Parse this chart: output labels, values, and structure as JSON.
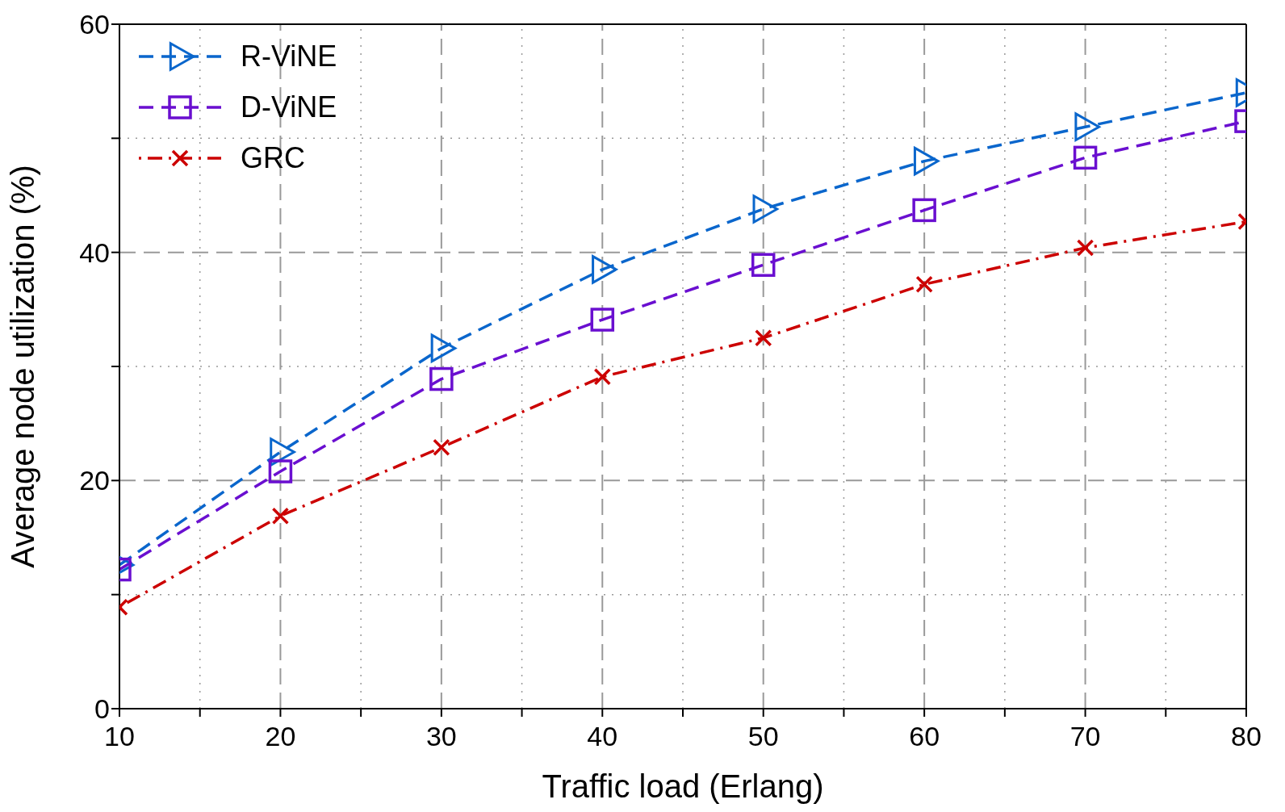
{
  "chart_data": {
    "type": "line",
    "xlabel": "Traffic load (Erlang)",
    "ylabel": "Average node utilization (%)",
    "x": [
      10,
      20,
      30,
      40,
      50,
      60,
      70,
      80
    ],
    "xlim": [
      10,
      80
    ],
    "xticks": [
      10,
      {
        "value": 15,
        "label": null
      },
      20,
      {
        "value": 25,
        "label": null
      },
      30,
      {
        "value": 35,
        "label": null
      },
      40,
      {
        "value": 45,
        "label": null
      },
      50,
      {
        "value": 55,
        "label": null
      },
      60,
      {
        "value": 65,
        "label": null
      },
      70,
      {
        "value": 75,
        "label": null
      },
      80
    ],
    "ylim": [
      0,
      60
    ],
    "yticks": [
      0,
      {
        "value": 10,
        "label": null
      },
      20,
      {
        "value": 30,
        "label": null
      },
      40,
      {
        "value": 50,
        "label": null
      },
      60
    ],
    "grid": true,
    "legend": "top left",
    "series": [
      {
        "name": "R-ViNE",
        "color": "#0a66cc",
        "marker": "triangle",
        "line_style": "dashed",
        "values": [
          12.6,
          22.5,
          31.6,
          38.5,
          43.8,
          48.0,
          51.0,
          54.0
        ]
      },
      {
        "name": "D-ViNE",
        "color": "#6a0fd0",
        "marker": "square",
        "line_style": "dashed",
        "values": [
          12.2,
          20.8,
          28.9,
          34.1,
          38.9,
          43.7,
          48.3,
          51.5
        ]
      },
      {
        "name": "GRC",
        "color": "#cc0000",
        "marker": "cross",
        "line_style": "dashdot",
        "values": [
          8.9,
          16.9,
          22.9,
          29.1,
          32.5,
          37.2,
          40.4,
          42.7
        ]
      }
    ]
  }
}
